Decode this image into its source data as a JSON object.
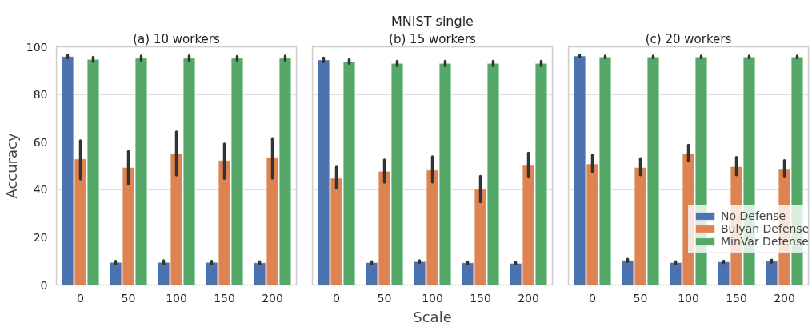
{
  "chart_data": [
    {
      "type": "bar",
      "title": "(a) 10 workers",
      "ylabel": "Accuracy",
      "categories": [
        "0",
        "50",
        "100",
        "150",
        "200"
      ],
      "ylim": [
        0,
        100
      ],
      "yticks": [
        0,
        20,
        40,
        60,
        80,
        100
      ],
      "grid": "y",
      "series": [
        {
          "color": "#4c72b0",
          "values": [
            95.9,
            9.5,
            9.5,
            9.5,
            9.3
          ],
          "errors": [
            0.6,
            0.5,
            0.7,
            0.5,
            0.5
          ]
        },
        {
          "color": "#dd8452",
          "values": [
            52.9,
            49.3,
            55.1,
            52.3,
            53.6
          ],
          "errors": [
            [
              44.5,
              60.6
            ],
            [
              42.4,
              56.0
            ],
            [
              46.1,
              64.3
            ],
            [
              44.7,
              59.2
            ],
            [
              44.8,
              61.5
            ]
          ]
        },
        {
          "color": "#55a868",
          "values": [
            94.7,
            95.2,
            95.2,
            95.2,
            95.2
          ],
          "errors": [
            0.9,
            0.9,
            1.0,
            0.8,
            0.9
          ]
        }
      ]
    },
    {
      "type": "bar",
      "title": "(b) 15 workers",
      "xlabel": "Scale",
      "annotations": [
        "MNIST single"
      ],
      "categories": [
        "0",
        "50",
        "100",
        "150",
        "200"
      ],
      "ylim": [
        0,
        100
      ],
      "yticks": [
        0,
        20,
        40,
        60,
        80,
        100
      ],
      "tick_labels": "x",
      "grid": "y",
      "series": [
        {
          "color": "#4c72b0",
          "values": [
            94.5,
            9.4,
            9.8,
            9.3,
            9.1
          ],
          "errors": [
            0.8,
            0.4,
            0.4,
            0.4,
            0.4
          ]
        },
        {
          "color": "#dd8452",
          "values": [
            44.8,
            47.7,
            48.2,
            40.2,
            50.2
          ],
          "errors": [
            [
              40.7,
              49.5
            ],
            [
              43.1,
              52.5
            ],
            [
              43.2,
              53.9
            ],
            [
              34.9,
              45.6
            ],
            [
              45.3,
              55.4
            ]
          ]
        },
        {
          "color": "#55a868",
          "values": [
            93.8,
            93.0,
            93.0,
            93.0,
            93.0
          ],
          "errors": [
            0.8,
            1.0,
            1.0,
            1.0,
            1.0
          ]
        }
      ]
    },
    {
      "type": "bar",
      "title": "(c) 20 workers",
      "categories": [
        "0",
        "50",
        "100",
        "150",
        "200"
      ],
      "ylim": [
        0,
        100
      ],
      "yticks": [
        0,
        20,
        40,
        60,
        80,
        100
      ],
      "tick_labels": "x",
      "grid": "y",
      "legend": "right",
      "series": [
        {
          "name": "No Defense",
          "color": "#4c72b0",
          "values": [
            96.1,
            10.3,
            9.4,
            9.7,
            10.0
          ],
          "errors": [
            0.4,
            0.5,
            0.4,
            0.4,
            0.5
          ]
        },
        {
          "name": "Bulyan Defense",
          "color": "#dd8452",
          "values": [
            50.8,
            49.3,
            55.1,
            49.7,
            48.5
          ],
          "errors": [
            [
              47.6,
              54.6
            ],
            [
              46.2,
              53.1
            ],
            [
              52.0,
              58.7
            ],
            [
              46.2,
              53.6
            ],
            [
              45.4,
              52.3
            ]
          ]
        },
        {
          "name": "MinVar Defense",
          "color": "#55a868",
          "values": [
            95.7,
            95.7,
            95.7,
            95.7,
            95.7
          ],
          "errors": [
            0.4,
            0.4,
            0.4,
            0.4,
            0.4
          ]
        }
      ]
    }
  ]
}
